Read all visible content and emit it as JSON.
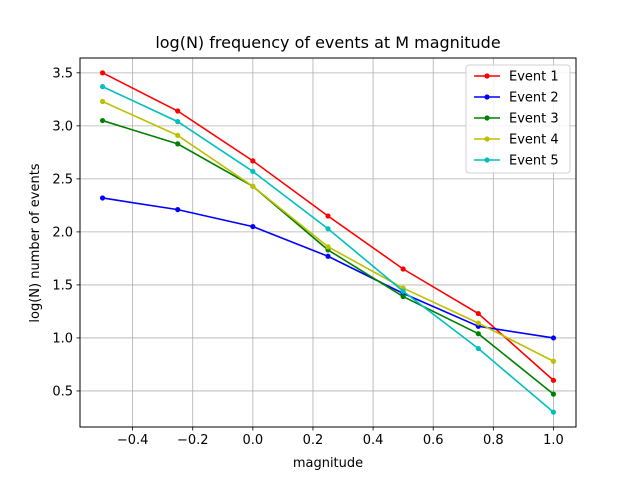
{
  "chart_data": {
    "type": "line",
    "title": "log(N) frequency of events at M magnitude",
    "xlabel": "magnitude",
    "ylabel": "log(N) number of events",
    "x": [
      -0.5,
      -0.25,
      0.0,
      0.25,
      0.5,
      0.75,
      1.0
    ],
    "xlim": [
      -0.575,
      1.075
    ],
    "ylim": [
      0.16,
      3.64
    ],
    "xticks": [
      -0.4,
      -0.2,
      0.0,
      0.2,
      0.4,
      0.6,
      0.8,
      1.0
    ],
    "xtick_labels": [
      "−0.4",
      "−0.2",
      "0.0",
      "0.2",
      "0.4",
      "0.6",
      "0.8",
      "1.0"
    ],
    "yticks": [
      0.5,
      1.0,
      1.5,
      2.0,
      2.5,
      3.0,
      3.5
    ],
    "ytick_labels": [
      "0.5",
      "1.0",
      "1.5",
      "2.0",
      "2.5",
      "3.0",
      "3.5"
    ],
    "grid": true,
    "legend_position": "top-right",
    "series": [
      {
        "name": "Event 1",
        "color": "#ff0000",
        "values": [
          3.5,
          3.14,
          2.67,
          2.15,
          1.65,
          1.23,
          0.6
        ]
      },
      {
        "name": "Event 2",
        "color": "#0000ff",
        "values": [
          2.32,
          2.21,
          2.05,
          1.77,
          1.42,
          1.11,
          1.0
        ]
      },
      {
        "name": "Event 3",
        "color": "#008000",
        "values": [
          3.05,
          2.83,
          2.43,
          1.83,
          1.39,
          1.04,
          0.47
        ]
      },
      {
        "name": "Event 4",
        "color": "#bfbf00",
        "values": [
          3.23,
          2.91,
          2.43,
          1.86,
          1.47,
          1.14,
          0.78
        ]
      },
      {
        "name": "Event 5",
        "color": "#00bfbf",
        "values": [
          3.37,
          3.04,
          2.57,
          2.03,
          1.44,
          0.9,
          0.3
        ]
      }
    ]
  }
}
